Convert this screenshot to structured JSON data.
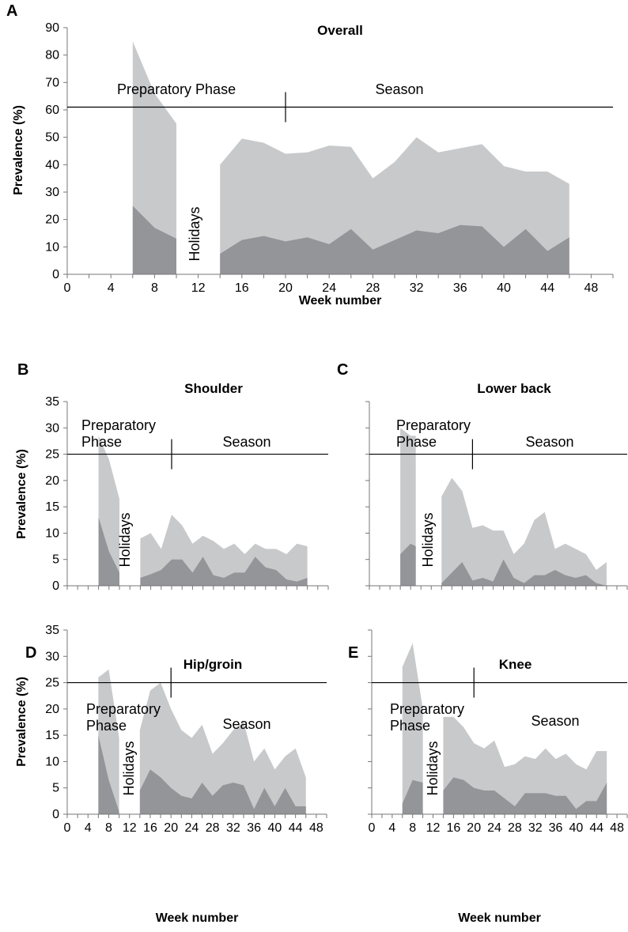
{
  "colors": {
    "total": "#c8c9cb",
    "inner": "#939598",
    "axis": "#777777"
  },
  "chart_data": [
    {
      "panel": "A",
      "type": "area",
      "title": "Overall",
      "xlabel": "Week number",
      "ylabel": "Prevalence (%)",
      "xlim": [
        0,
        50
      ],
      "ylim": [
        0,
        90
      ],
      "yticks": [
        0,
        10,
        20,
        30,
        40,
        50,
        60,
        70,
        80,
        90
      ],
      "xticks": [
        0,
        4,
        8,
        12,
        16,
        20,
        24,
        28,
        32,
        36,
        40,
        44,
        48
      ],
      "show_x_tick_labels": true,
      "phase_level": 61,
      "phase_divider_week": 20,
      "annotations": {
        "preparatory": "Preparatory Phase",
        "season": "Season",
        "holidays": "Holidays"
      },
      "series": [
        {
          "x": [
            6,
            8,
            10
          ],
          "total": [
            85,
            66,
            55
          ],
          "inner": [
            25,
            17,
            13
          ]
        },
        {
          "x": [
            14,
            16,
            18,
            20,
            22,
            24,
            26,
            28,
            30,
            32,
            34,
            36,
            38,
            40,
            42,
            44,
            46
          ],
          "total": [
            40,
            49.5,
            48,
            44,
            44.5,
            47,
            46.5,
            35,
            41,
            50,
            44.5,
            46,
            47.5,
            39.5,
            37.5,
            37.5,
            33
          ],
          "inner": [
            7.5,
            12.5,
            14,
            12,
            13.5,
            11,
            16.5,
            9,
            12.5,
            16,
            15,
            18,
            17.5,
            10,
            16.5,
            8.5,
            13.5
          ]
        }
      ]
    },
    {
      "panel": "B",
      "type": "area",
      "title": "Shoulder",
      "xlabel": "",
      "ylabel": "Prevalence (%)",
      "xlim": [
        0,
        50
      ],
      "ylim": [
        0,
        35
      ],
      "yticks": [
        0,
        5,
        10,
        15,
        20,
        25,
        30,
        35
      ],
      "xticks": [
        0,
        4,
        8,
        12,
        16,
        20,
        24,
        28,
        32,
        36,
        40,
        44,
        48
      ],
      "show_x_tick_labels": false,
      "phase_level": 25,
      "phase_divider_week": 20,
      "annotations": {
        "preparatory": "Preparatory Phase",
        "season": "Season",
        "holidays": "Holidays"
      },
      "series": [
        {
          "x": [
            6,
            8,
            10
          ],
          "total": [
            28.5,
            24,
            16.5
          ],
          "inner": [
            13,
            6.5,
            2.5
          ]
        },
        {
          "x": [
            14,
            16,
            18,
            20,
            22,
            24,
            26,
            28,
            30,
            32,
            34,
            36,
            38,
            40,
            42,
            44,
            46
          ],
          "total": [
            9,
            10,
            7,
            13.5,
            11.5,
            8,
            9.5,
            8.5,
            7,
            8,
            6,
            8,
            7,
            7,
            6,
            8,
            7.5
          ],
          "inner": [
            1.5,
            2.2,
            3,
            5,
            5,
            2.5,
            5.5,
            2,
            1.5,
            2.5,
            2.5,
            5.5,
            3.5,
            3,
            1.2,
            0.8,
            1.5
          ]
        }
      ]
    },
    {
      "panel": "C",
      "type": "area",
      "title": "Lower back",
      "xlabel": "",
      "ylabel": "",
      "xlim": [
        0,
        50
      ],
      "ylim": [
        0,
        35
      ],
      "yticks": [
        0,
        5,
        10,
        15,
        20,
        25,
        30,
        35
      ],
      "xticks": [
        0,
        4,
        8,
        12,
        16,
        20,
        24,
        28,
        32,
        36,
        40,
        44,
        48
      ],
      "show_x_tick_labels": false,
      "show_y_tick_labels": false,
      "phase_level": 25,
      "phase_divider_week": 20,
      "annotations": {
        "preparatory": "Preparatory Phase",
        "season": "Season",
        "holidays": "Holidays"
      },
      "series": [
        {
          "x": [
            6,
            8,
            9
          ],
          "total": [
            30,
            28.5,
            28.5
          ],
          "inner": [
            6,
            8,
            7.5
          ]
        },
        {
          "x": [
            14,
            16,
            18,
            20,
            22,
            24,
            26,
            28,
            30,
            32,
            34,
            36,
            38,
            40,
            42,
            44,
            46
          ],
          "total": [
            17,
            20.5,
            18,
            11,
            11.5,
            10.5,
            10.5,
            6,
            8,
            12.5,
            14,
            7,
            8,
            7,
            6,
            3,
            4.5
          ],
          "inner": [
            0.5,
            2.5,
            4.5,
            1,
            1.5,
            0.8,
            5,
            1.5,
            0.5,
            2,
            2,
            3,
            2,
            1.5,
            2,
            0.5,
            0
          ]
        }
      ]
    },
    {
      "panel": "D",
      "type": "area",
      "title": "Hip/groin",
      "xlabel": "Week number",
      "ylabel": "Prevalence (%)",
      "xlim": [
        0,
        50
      ],
      "ylim": [
        0,
        35
      ],
      "yticks": [
        0,
        5,
        10,
        15,
        20,
        25,
        30,
        35
      ],
      "xticks": [
        0,
        4,
        8,
        12,
        16,
        20,
        24,
        28,
        32,
        36,
        40,
        44,
        48
      ],
      "show_x_tick_labels": true,
      "phase_level": 25,
      "phase_divider_week": 20,
      "annotations": {
        "preparatory": "Preparatory Phase",
        "season": "Season",
        "holidays": "Holidays"
      },
      "series": [
        {
          "x": [
            6,
            8,
            10
          ],
          "total": [
            26,
            27.5,
            14.5
          ],
          "inner": [
            15,
            6.5,
            0.5
          ]
        },
        {
          "x": [
            14,
            16,
            18,
            20,
            22,
            24,
            26,
            28,
            30,
            32,
            34,
            36,
            38,
            40,
            42,
            44,
            46
          ],
          "total": [
            16,
            23.5,
            25,
            20,
            16,
            14.5,
            17,
            11.5,
            13.5,
            16,
            17.5,
            10,
            12.5,
            8.5,
            11,
            12.5,
            7
          ],
          "inner": [
            4.5,
            8.5,
            7,
            5,
            3.5,
            3,
            6,
            3.5,
            5.5,
            6,
            5.5,
            1,
            5,
            1.5,
            5,
            1.5,
            1.5
          ]
        }
      ]
    },
    {
      "panel": "E",
      "type": "area",
      "title": "Knee",
      "xlabel": "Week number",
      "ylabel": "",
      "xlim": [
        0,
        50
      ],
      "ylim": [
        0,
        35
      ],
      "yticks": [
        0,
        5,
        10,
        15,
        20,
        25,
        30,
        35
      ],
      "xticks": [
        0,
        4,
        8,
        12,
        16,
        20,
        24,
        28,
        32,
        36,
        40,
        44,
        48
      ],
      "show_x_tick_labels": true,
      "show_y_tick_labels": false,
      "phase_level": 25,
      "phase_divider_week": 20,
      "annotations": {
        "preparatory": "Preparatory Phase",
        "season": "Season",
        "holidays": "Holidays"
      },
      "series": [
        {
          "x": [
            6,
            8,
            10
          ],
          "total": [
            28,
            32.5,
            20
          ],
          "inner": [
            2,
            6.5,
            6
          ]
        },
        {
          "x": [
            14,
            16,
            18,
            20,
            22,
            24,
            26,
            28,
            30,
            32,
            34,
            36,
            38,
            40,
            42,
            44,
            46
          ],
          "total": [
            18.5,
            18.5,
            16.5,
            13.5,
            12.5,
            14,
            9,
            9.5,
            11,
            10.5,
            12.5,
            10.5,
            11.5,
            9.5,
            8.5,
            12,
            12
          ],
          "inner": [
            4.5,
            7,
            6.5,
            5,
            4.5,
            4.5,
            3,
            1.5,
            4,
            4,
            4,
            3.5,
            3.5,
            1,
            2.5,
            2.5,
            6
          ]
        }
      ]
    }
  ]
}
